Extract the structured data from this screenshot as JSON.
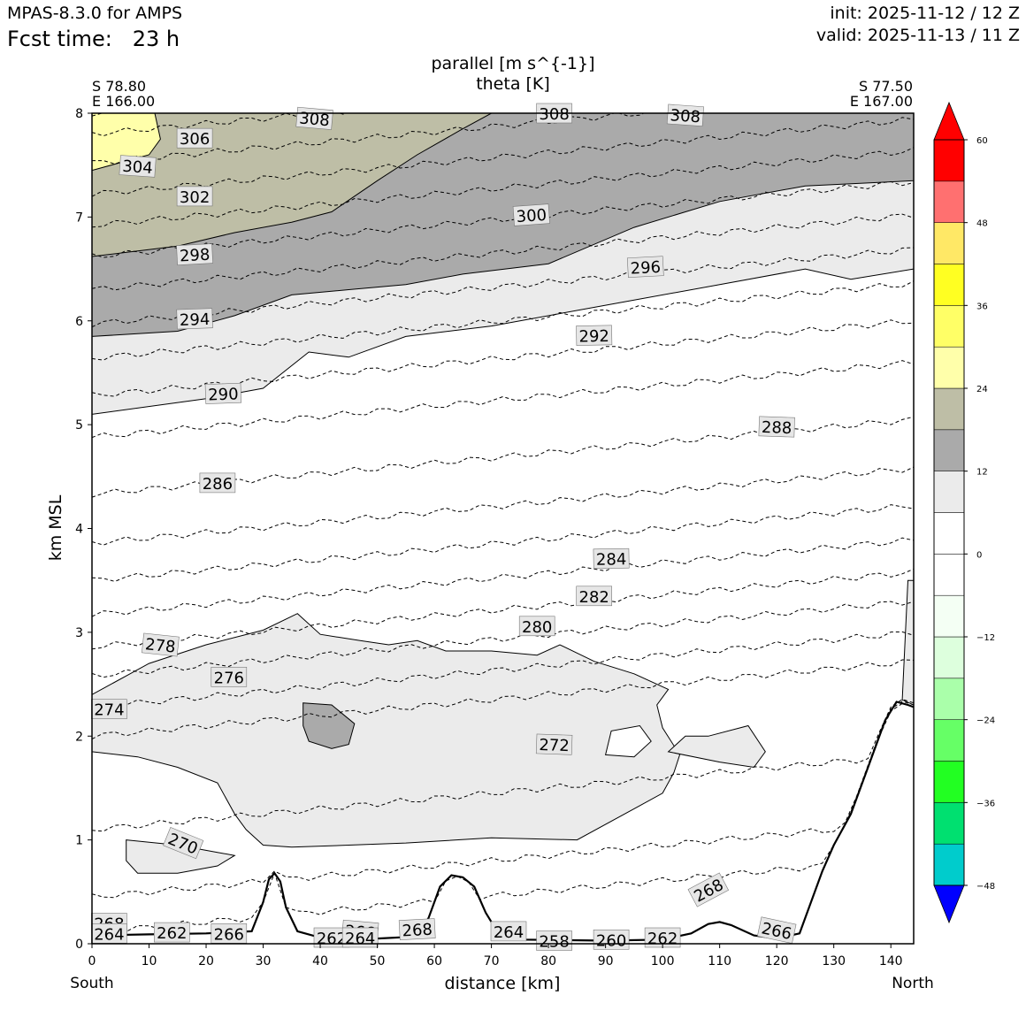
{
  "header": {
    "model": "MPAS-8.3.0 for AMPS",
    "fcst_label": "Fcst time:",
    "fcst_value": "23 h",
    "init": "init: 2025-11-12 / 12 Z",
    "valid": "valid: 2025-11-13 / 11 Z"
  },
  "chart_data": {
    "type": "contour",
    "title_line1": "parallel [m s^{-1}]",
    "title_line2": "theta [K]",
    "left_endpoint": [
      "S 78.80",
      "E 166.00"
    ],
    "right_endpoint": [
      "S 77.50",
      "E 167.00"
    ],
    "xlabel": "distance [km]",
    "ylabel": "km MSL",
    "xlim": [
      0,
      144
    ],
    "ylim": [
      0,
      8
    ],
    "x_ticks": [
      0,
      10,
      20,
      30,
      40,
      50,
      60,
      70,
      80,
      90,
      100,
      110,
      120,
      130,
      140
    ],
    "y_ticks": [
      0,
      1,
      2,
      3,
      4,
      5,
      6,
      7,
      8
    ],
    "direction_left": "South",
    "direction_right": "North",
    "colorbar": {
      "levels": [
        -54,
        -48,
        -42,
        -36,
        -30,
        -24,
        -18,
        -12,
        -6,
        0,
        6,
        12,
        18,
        24,
        30,
        36,
        42,
        48,
        54,
        60
      ],
      "tick_values": [
        -48,
        -36,
        -24,
        -12,
        0,
        12,
        24,
        36,
        48,
        60
      ],
      "tick_labels": [
        "−48",
        "−36",
        "−24",
        "−12",
        "0",
        "12",
        "24",
        "36",
        "48",
        "60"
      ],
      "colors": [
        "#0000ff",
        "#00cccc",
        "#00e070",
        "#22ff22",
        "#66ff66",
        "#aaffaa",
        "#ddffdd",
        "#f4fff4",
        "#ffffff",
        "#ffffff",
        "#ebebeb",
        "#aaaaaa",
        "#bebea6",
        "#ffffaa",
        "#ffff66",
        "#ffff22",
        "#ffe866",
        "#ff7070",
        "#ff0000"
      ]
    },
    "terrain": [
      [
        0,
        0.08
      ],
      [
        10,
        0.09
      ],
      [
        20,
        0.1
      ],
      [
        28,
        0.12
      ],
      [
        30,
        0.4
      ],
      [
        31,
        0.62
      ],
      [
        32,
        0.68
      ],
      [
        33,
        0.6
      ],
      [
        34,
        0.35
      ],
      [
        36,
        0.12
      ],
      [
        40,
        0.06
      ],
      [
        50,
        0.05
      ],
      [
        57,
        0.07
      ],
      [
        59,
        0.25
      ],
      [
        61,
        0.55
      ],
      [
        63,
        0.66
      ],
      [
        65,
        0.64
      ],
      [
        67,
        0.55
      ],
      [
        69,
        0.3
      ],
      [
        71,
        0.12
      ],
      [
        75,
        0.04
      ],
      [
        90,
        0.03
      ],
      [
        100,
        0.04
      ],
      [
        105,
        0.1
      ],
      [
        108,
        0.19
      ],
      [
        110,
        0.21
      ],
      [
        112,
        0.18
      ],
      [
        116,
        0.08
      ],
      [
        120,
        0.05
      ],
      [
        124,
        0.1
      ],
      [
        126,
        0.4
      ],
      [
        128,
        0.7
      ],
      [
        130,
        0.95
      ],
      [
        133,
        1.25
      ],
      [
        136,
        1.7
      ],
      [
        139,
        2.15
      ],
      [
        141,
        2.33
      ],
      [
        143,
        2.3
      ],
      [
        144,
        2.28
      ]
    ],
    "wind_regions": [
      {
        "fill": "#ebebeb",
        "points": [
          [
            0,
            5.1
          ],
          [
            20,
            5.25
          ],
          [
            30,
            5.35
          ],
          [
            38,
            5.7
          ],
          [
            45,
            5.65
          ],
          [
            55,
            5.85
          ],
          [
            70,
            5.95
          ],
          [
            90,
            6.15
          ],
          [
            110,
            6.35
          ],
          [
            125,
            6.5
          ],
          [
            133,
            6.4
          ],
          [
            144,
            6.5
          ],
          [
            144,
            8
          ],
          [
            0,
            8
          ]
        ]
      },
      {
        "fill": "#aaaaaa",
        "points": [
          [
            0,
            5.85
          ],
          [
            15,
            5.9
          ],
          [
            25,
            6.05
          ],
          [
            35,
            6.25
          ],
          [
            45,
            6.3
          ],
          [
            55,
            6.35
          ],
          [
            65,
            6.45
          ],
          [
            80,
            6.55
          ],
          [
            95,
            6.9
          ],
          [
            110,
            7.15
          ],
          [
            125,
            7.3
          ],
          [
            144,
            7.35
          ],
          [
            144,
            8
          ],
          [
            0,
            8
          ]
        ]
      },
      {
        "fill": "#bebea6",
        "points": [
          [
            0,
            6.62
          ],
          [
            15,
            6.72
          ],
          [
            25,
            6.85
          ],
          [
            35,
            6.95
          ],
          [
            42,
            7.05
          ],
          [
            50,
            7.35
          ],
          [
            57,
            7.6
          ],
          [
            65,
            7.85
          ],
          [
            70,
            8
          ],
          [
            0,
            8
          ]
        ]
      },
      {
        "fill": "#ffffaa",
        "points": [
          [
            0,
            7.45
          ],
          [
            10,
            7.6
          ],
          [
            12,
            7.75
          ],
          [
            11,
            8
          ],
          [
            0,
            8
          ]
        ]
      },
      {
        "fill": "#ebebeb",
        "points": [
          [
            0,
            1.85
          ],
          [
            8,
            1.8
          ],
          [
            15,
            1.7
          ],
          [
            22,
            1.55
          ],
          [
            25,
            1.25
          ],
          [
            27,
            1.1
          ],
          [
            30,
            0.95
          ],
          [
            35,
            0.93
          ],
          [
            45,
            0.95
          ],
          [
            55,
            0.97
          ],
          [
            70,
            1.02
          ],
          [
            85,
            1.0
          ],
          [
            95,
            1.3
          ],
          [
            100,
            1.45
          ],
          [
            102,
            1.65
          ],
          [
            103,
            1.82
          ],
          [
            100,
            2.08
          ],
          [
            99,
            2.3
          ],
          [
            101,
            2.45
          ],
          [
            95,
            2.6
          ],
          [
            88,
            2.72
          ],
          [
            82,
            2.88
          ],
          [
            78,
            2.78
          ],
          [
            70,
            2.82
          ],
          [
            62,
            2.82
          ],
          [
            57,
            2.92
          ],
          [
            52,
            2.88
          ],
          [
            47,
            2.92
          ],
          [
            40,
            2.98
          ],
          [
            36,
            3.18
          ],
          [
            30,
            3.02
          ],
          [
            20,
            2.88
          ],
          [
            10,
            2.7
          ],
          [
            0,
            2.4
          ]
        ]
      },
      {
        "fill": "#ffffff",
        "points": [
          [
            90,
            1.82
          ],
          [
            95,
            1.8
          ],
          [
            98,
            1.95
          ],
          [
            96,
            2.1
          ],
          [
            91,
            2.05
          ]
        ]
      },
      {
        "fill": "#ebebeb",
        "points": [
          [
            101,
            1.85
          ],
          [
            110,
            1.75
          ],
          [
            116,
            1.7
          ],
          [
            118,
            1.85
          ],
          [
            115,
            2.1
          ],
          [
            108,
            2.0
          ],
          [
            104,
            2.0
          ]
        ]
      },
      {
        "fill": "#aaaaaa",
        "points": [
          [
            37,
            2.32
          ],
          [
            42,
            2.3
          ],
          [
            46,
            2.12
          ],
          [
            45,
            1.92
          ],
          [
            42,
            1.88
          ],
          [
            38,
            1.95
          ],
          [
            37,
            2.1
          ]
        ]
      },
      {
        "fill": "#ebebeb",
        "points": [
          [
            6,
            1.0
          ],
          [
            15,
            0.95
          ],
          [
            22,
            0.88
          ],
          [
            25,
            0.85
          ],
          [
            22,
            0.75
          ],
          [
            15,
            0.68
          ],
          [
            8,
            0.68
          ],
          [
            6,
            0.8
          ]
        ]
      },
      {
        "fill": "#ebebeb",
        "points": [
          [
            143,
            3.5
          ],
          [
            144,
            3.5
          ],
          [
            144,
            2.3
          ],
          [
            142,
            2.35
          ]
        ]
      }
    ],
    "theta_lines": [
      {
        "label": "262",
        "y": 0.11
      },
      {
        "label": "266",
        "y": 0.45
      },
      {
        "label": "270",
        "y": 1.1
      },
      {
        "label": "272",
        "y": 2.0
      },
      {
        "label": "274",
        "y": 2.28
      },
      {
        "label": "276",
        "y": 2.58
      },
      {
        "label": "278",
        "y": 2.86
      },
      {
        "label": "280",
        "y": 3.17
      },
      {
        "label": "282",
        "y": 3.5
      },
      {
        "label": "284",
        "y": 3.86
      },
      {
        "label": "286",
        "y": 4.33
      },
      {
        "label": "288",
        "y": 4.88
      },
      {
        "label": "290",
        "y": 5.28
      },
      {
        "label": "292",
        "y": 5.64
      },
      {
        "label": "294",
        "y": 5.97
      },
      {
        "label": "296",
        "y": 6.3
      },
      {
        "label": "298",
        "y": 6.62
      },
      {
        "label": "300",
        "y": 6.92
      },
      {
        "label": "302",
        "y": 7.22
      },
      {
        "label": "304",
        "y": 7.52
      },
      {
        "label": "306",
        "y": 7.8
      },
      {
        "label": "308",
        "y": 8.0
      }
    ],
    "contour_labels": [
      {
        "text": "308",
        "x": 39,
        "y": 7.95,
        "rot": 5
      },
      {
        "text": "308",
        "x": 81,
        "y": 8.0,
        "rot": 0
      },
      {
        "text": "308",
        "x": 104,
        "y": 7.98,
        "rot": 4
      },
      {
        "text": "306",
        "x": 18,
        "y": 7.76,
        "rot": 0
      },
      {
        "text": "304",
        "x": 8,
        "y": 7.49,
        "rot": 4
      },
      {
        "text": "302",
        "x": 18,
        "y": 7.2,
        "rot": 0
      },
      {
        "text": "300",
        "x": 77,
        "y": 7.02,
        "rot": -4
      },
      {
        "text": "298",
        "x": 18,
        "y": 6.64,
        "rot": -3
      },
      {
        "text": "296",
        "x": 97,
        "y": 6.52,
        "rot": -3
      },
      {
        "text": "294",
        "x": 18,
        "y": 6.02,
        "rot": -2
      },
      {
        "text": "292",
        "x": 88,
        "y": 5.86,
        "rot": -1
      },
      {
        "text": "290",
        "x": 23,
        "y": 5.3,
        "rot": -2
      },
      {
        "text": "288",
        "x": 120,
        "y": 4.98,
        "rot": 2
      },
      {
        "text": "286",
        "x": 22,
        "y": 4.44,
        "rot": 0
      },
      {
        "text": "284",
        "x": 91,
        "y": 3.71,
        "rot": -1
      },
      {
        "text": "282",
        "x": 88,
        "y": 3.35,
        "rot": 0
      },
      {
        "text": "280",
        "x": 78,
        "y": 3.06,
        "rot": 0
      },
      {
        "text": "278",
        "x": 12,
        "y": 2.88,
        "rot": 6
      },
      {
        "text": "276",
        "x": 24,
        "y": 2.57,
        "rot": 0
      },
      {
        "text": "274",
        "x": 3,
        "y": 2.26,
        "rot": 0
      },
      {
        "text": "272",
        "x": 81,
        "y": 1.92,
        "rot": 2
      },
      {
        "text": "270",
        "x": 16,
        "y": 0.97,
        "rot": 22
      },
      {
        "text": "268",
        "x": 108,
        "y": 0.52,
        "rot": -28
      },
      {
        "text": "268",
        "x": 3,
        "y": 0.2,
        "rot": 0
      },
      {
        "text": "268",
        "x": 57,
        "y": 0.14,
        "rot": -3
      },
      {
        "text": "266",
        "x": 120,
        "y": 0.13,
        "rot": 12
      },
      {
        "text": "266",
        "x": 24,
        "y": 0.1,
        "rot": 0
      },
      {
        "text": "266",
        "x": 47,
        "y": 0.12,
        "rot": 5
      },
      {
        "text": "264",
        "x": 73,
        "y": 0.12,
        "rot": 0
      },
      {
        "text": "264",
        "x": 3,
        "y": 0.1,
        "rot": 0
      },
      {
        "text": "262",
        "x": 14,
        "y": 0.11,
        "rot": 0
      },
      {
        "text": "262",
        "x": 100,
        "y": 0.06,
        "rot": 0
      },
      {
        "text": "262",
        "x": 42,
        "y": 0.06,
        "rot": 0
      },
      {
        "text": "260",
        "x": 91,
        "y": 0.04,
        "rot": 0
      },
      {
        "text": "258",
        "x": 81,
        "y": 0.03,
        "rot": 0
      },
      {
        "text": "264",
        "x": 47,
        "y": 0.06,
        "rot": 0
      }
    ]
  }
}
